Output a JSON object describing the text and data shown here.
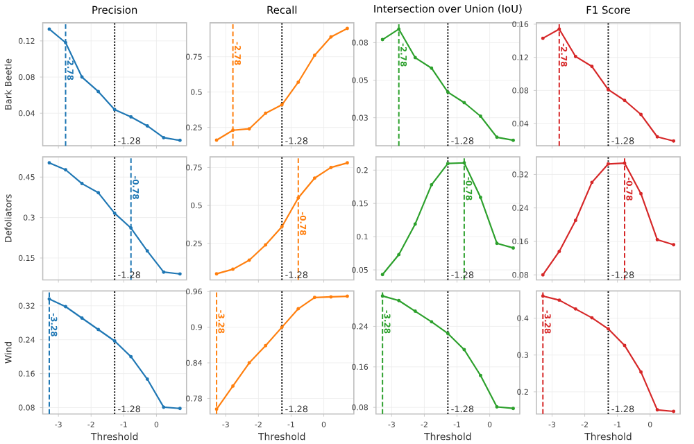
{
  "chart_data": [
    {
      "type": "line",
      "title": "Precision",
      "ylabel": "Bark Beetle",
      "x": [
        -3.28,
        -2.78,
        -2.28,
        -1.78,
        -1.28,
        -0.78,
        -0.28,
        0.22,
        0.72
      ],
      "values": [
        0.133,
        0.118,
        0.08,
        0.064,
        0.044,
        0.036,
        0.026,
        0.013,
        0.01
      ],
      "color": "#1f77b4",
      "xlim": [
        -3.48,
        0.92
      ],
      "ylim": [
        0.004,
        0.14
      ],
      "xticks": [
        -3,
        -2,
        -1,
        0
      ],
      "yticks": [
        0.04,
        0.08,
        0.12
      ],
      "grid": true,
      "marker": "circle",
      "tick_labels": "y",
      "ref_lines": [
        {
          "axis": "x",
          "value": -2.78,
          "label": "-2.78",
          "color": "#1f77b4",
          "line_style": "dashed"
        },
        {
          "axis": "x",
          "value": -1.28,
          "label": "-1.28",
          "color": "#000000",
          "line_style": "dotted"
        }
      ]
    },
    {
      "type": "line",
      "title": "Recall",
      "x": [
        -3.28,
        -2.78,
        -2.28,
        -1.78,
        -1.28,
        -0.78,
        -0.28,
        0.22,
        0.72
      ],
      "values": [
        0.16,
        0.23,
        0.24,
        0.35,
        0.41,
        0.57,
        0.76,
        0.89,
        0.95
      ],
      "color": "#ff7f0e",
      "xlim": [
        -3.48,
        0.92
      ],
      "ylim": [
        0.12,
        0.99
      ],
      "xticks": [
        -3,
        -2,
        -1,
        0
      ],
      "yticks": [
        0.25,
        0.5,
        0.75
      ],
      "grid": true,
      "marker": "circle",
      "tick_labels": "y",
      "ref_lines": [
        {
          "axis": "x",
          "value": -2.78,
          "label": "-2.78",
          "color": "#ff7f0e",
          "line_style": "dashed"
        },
        {
          "axis": "x",
          "value": -1.28,
          "label": "-1.28",
          "color": "#000000",
          "line_style": "dotted"
        }
      ]
    },
    {
      "type": "line",
      "title": "Intersection over Union (IoU)",
      "x": [
        -3.28,
        -2.78,
        -2.28,
        -1.78,
        -1.28,
        -0.78,
        -0.28,
        0.22,
        0.72
      ],
      "values": [
        0.077,
        0.084,
        0.065,
        0.058,
        0.042,
        0.035,
        0.026,
        0.012,
        0.01
      ],
      "color": "#2ca02c",
      "xlim": [
        -3.48,
        0.92
      ],
      "ylim": [
        0.0063,
        0.0882
      ],
      "xticks": [
        -3,
        -2,
        -1,
        0
      ],
      "yticks": [
        {
          "value": 0.025,
          "label": "0.03"
        },
        {
          "value": 0.05,
          "label": "0.05"
        },
        {
          "value": 0.075,
          "label": "0.08"
        }
      ],
      "grid": true,
      "marker": "circle",
      "tick_labels": "y",
      "ref_lines": [
        {
          "axis": "x",
          "value": -2.78,
          "label": "-2.78",
          "color": "#2ca02c",
          "line_style": "dashed"
        },
        {
          "axis": "x",
          "value": -1.28,
          "label": "-1.28",
          "color": "#000000",
          "line_style": "dotted"
        }
      ]
    },
    {
      "type": "line",
      "title": "F1 Score",
      "x": [
        -3.28,
        -2.78,
        -2.28,
        -1.78,
        -1.28,
        -0.78,
        -0.28,
        0.22,
        0.72
      ],
      "values": [
        0.143,
        0.154,
        0.121,
        0.109,
        0.081,
        0.068,
        0.051,
        0.024,
        0.019
      ],
      "color": "#d62728",
      "xlim": [
        -3.48,
        0.92
      ],
      "ylim": [
        0.0132,
        0.1617
      ],
      "xticks": [
        -3,
        -2,
        -1,
        0
      ],
      "yticks": [
        0.04,
        0.08,
        0.12,
        0.16
      ],
      "grid": true,
      "marker": "circle",
      "tick_labels": "y",
      "ref_lines": [
        {
          "axis": "x",
          "value": -2.78,
          "label": "-2.78",
          "color": "#d62728",
          "line_style": "dashed"
        },
        {
          "axis": "x",
          "value": -1.28,
          "label": "-1.28",
          "color": "#000000",
          "line_style": "dotted"
        }
      ]
    },
    {
      "type": "line",
      "ylabel": "Defoliators",
      "x": [
        -3.28,
        -2.78,
        -2.28,
        -1.78,
        -1.28,
        -0.78,
        -0.28,
        0.22,
        0.72
      ],
      "values": [
        0.503,
        0.477,
        0.426,
        0.392,
        0.316,
        0.261,
        0.176,
        0.098,
        0.091
      ],
      "color": "#1f77b4",
      "xlim": [
        -3.48,
        0.92
      ],
      "ylim": [
        0.069,
        0.525
      ],
      "xticks": [
        -3,
        -2,
        -1,
        0
      ],
      "yticks": [
        0.15,
        0.3,
        0.45
      ],
      "grid": true,
      "marker": "circle",
      "tick_labels": "y",
      "ref_lines": [
        {
          "axis": "x",
          "value": -0.78,
          "label": "-0.78",
          "color": "#1f77b4",
          "line_style": "dashed"
        },
        {
          "axis": "x",
          "value": -1.28,
          "label": "-1.28",
          "color": "#000000",
          "line_style": "dotted"
        }
      ]
    },
    {
      "type": "line",
      "x": [
        -3.28,
        -2.78,
        -2.28,
        -1.78,
        -1.28,
        -0.78,
        -0.28,
        0.22,
        0.72
      ],
      "values": [
        0.05,
        0.08,
        0.14,
        0.24,
        0.36,
        0.55,
        0.68,
        0.75,
        0.78
      ],
      "color": "#ff7f0e",
      "xlim": [
        -3.48,
        0.92
      ],
      "ylim": [
        0.01,
        0.82
      ],
      "xticks": [
        -3,
        -2,
        -1,
        0
      ],
      "yticks": [
        0.25,
        0.5,
        0.75
      ],
      "grid": true,
      "marker": "circle",
      "tick_labels": "y",
      "ref_lines": [
        {
          "axis": "x",
          "value": -0.78,
          "label": "-0.78",
          "color": "#ff7f0e",
          "line_style": "dashed"
        },
        {
          "axis": "x",
          "value": -1.28,
          "label": "-1.28",
          "color": "#000000",
          "line_style": "dotted"
        }
      ]
    },
    {
      "type": "line",
      "x": [
        -3.28,
        -2.78,
        -2.28,
        -1.78,
        -1.28,
        -0.78,
        -0.28,
        0.22,
        0.72
      ],
      "values": [
        0.043,
        0.073,
        0.119,
        0.178,
        0.21,
        0.211,
        0.159,
        0.09,
        0.083
      ],
      "color": "#2ca02c",
      "xlim": [
        -3.48,
        0.92
      ],
      "ylim": [
        0.035,
        0.22
      ],
      "xticks": [
        -3,
        -2,
        -1,
        0
      ],
      "yticks": [
        0.05,
        0.1,
        0.15,
        0.2
      ],
      "grid": true,
      "marker": "circle",
      "tick_labels": "y",
      "ref_lines": [
        {
          "axis": "x",
          "value": -0.78,
          "label": "-0.78",
          "color": "#2ca02c",
          "line_style": "dashed"
        },
        {
          "axis": "x",
          "value": -1.28,
          "label": "-1.28",
          "color": "#000000",
          "line_style": "dotted"
        }
      ]
    },
    {
      "type": "line",
      "x": [
        -3.28,
        -2.78,
        -2.28,
        -1.78,
        -1.28,
        -0.78,
        -0.28,
        0.22,
        0.72
      ],
      "values": [
        0.08,
        0.136,
        0.21,
        0.301,
        0.345,
        0.347,
        0.274,
        0.164,
        0.152
      ],
      "color": "#d62728",
      "xlim": [
        -3.48,
        0.92
      ],
      "ylim": [
        0.068,
        0.362
      ],
      "xticks": [
        -3,
        -2,
        -1,
        0
      ],
      "yticks": [
        0.08,
        0.16,
        0.24,
        0.32
      ],
      "grid": true,
      "marker": "circle",
      "tick_labels": "y",
      "ref_lines": [
        {
          "axis": "x",
          "value": -0.78,
          "label": "-0.78",
          "color": "#d62728",
          "line_style": "dashed"
        },
        {
          "axis": "x",
          "value": -1.28,
          "label": "-1.28",
          "color": "#000000",
          "line_style": "dotted"
        }
      ]
    },
    {
      "type": "line",
      "ylabel": "Wind",
      "xlabel": "Threshold",
      "x": [
        -3.28,
        -2.78,
        -2.28,
        -1.78,
        -1.28,
        -0.78,
        -0.28,
        0.22,
        0.72
      ],
      "values": [
        0.336,
        0.318,
        0.291,
        0.264,
        0.237,
        0.2,
        0.147,
        0.081,
        0.078
      ],
      "color": "#1f77b4",
      "xlim": [
        -3.48,
        0.92
      ],
      "ylim": [
        0.065,
        0.355
      ],
      "xticks": [
        -3,
        -2,
        -1,
        0
      ],
      "yticks": [
        0.08,
        0.16,
        0.24,
        0.32
      ],
      "grid": true,
      "marker": "circle",
      "ref_lines": [
        {
          "axis": "x",
          "value": -3.28,
          "label": "-3.28",
          "color": "#1f77b4",
          "line_style": "dashed"
        },
        {
          "axis": "x",
          "value": -1.28,
          "label": "-1.28",
          "color": "#000000",
          "line_style": "dotted"
        }
      ]
    },
    {
      "type": "line",
      "xlabel": "Threshold",
      "x": [
        -3.28,
        -2.78,
        -2.28,
        -1.78,
        -1.28,
        -0.78,
        -0.28,
        0.22,
        0.72
      ],
      "values": [
        0.762,
        0.801,
        0.84,
        0.869,
        0.9,
        0.931,
        0.95,
        0.951,
        0.952
      ],
      "color": "#ff7f0e",
      "xlim": [
        -3.48,
        0.92
      ],
      "ylim": [
        0.754,
        0.961
      ],
      "xticks": [
        -3,
        -2,
        -1,
        0
      ],
      "yticks": [
        0.78,
        0.84,
        0.9,
        0.96
      ],
      "grid": true,
      "marker": "circle",
      "ref_lines": [
        {
          "axis": "x",
          "value": -3.28,
          "label": "-3.28",
          "color": "#ff7f0e",
          "line_style": "dashed"
        },
        {
          "axis": "x",
          "value": -1.28,
          "label": "-1.28",
          "color": "#000000",
          "line_style": "dotted"
        }
      ]
    },
    {
      "type": "line",
      "xlabel": "Threshold",
      "x": [
        -3.28,
        -2.78,
        -2.28,
        -1.78,
        -1.28,
        -0.78,
        -0.28,
        0.22,
        0.72
      ],
      "values": [
        0.3,
        0.291,
        0.27,
        0.249,
        0.226,
        0.194,
        0.143,
        0.081,
        0.078
      ],
      "color": "#2ca02c",
      "xlim": [
        -3.48,
        0.92
      ],
      "ylim": [
        0.067,
        0.31
      ],
      "xticks": [
        -3,
        -2,
        -1,
        0
      ],
      "yticks": [
        0.08,
        0.16,
        0.24
      ],
      "grid": true,
      "marker": "circle",
      "ref_lines": [
        {
          "axis": "x",
          "value": -3.28,
          "label": "-3.28",
          "color": "#2ca02c",
          "line_style": "dashed"
        },
        {
          "axis": "x",
          "value": -1.28,
          "label": "-1.28",
          "color": "#000000",
          "line_style": "dotted"
        }
      ]
    },
    {
      "type": "line",
      "xlabel": "Threshold",
      "x": [
        -3.28,
        -2.78,
        -2.28,
        -1.78,
        -1.28,
        -0.78,
        -0.28,
        0.22,
        0.72
      ],
      "values": [
        0.46,
        0.449,
        0.425,
        0.401,
        0.371,
        0.326,
        0.254,
        0.151,
        0.147
      ],
      "color": "#d62728",
      "xlim": [
        -3.48,
        0.92
      ],
      "ylim": [
        0.14,
        0.474
      ],
      "xticks": [
        -3,
        -2,
        -1,
        0
      ],
      "yticks": [
        0.2,
        0.3,
        0.4
      ],
      "grid": true,
      "marker": "circle",
      "ref_lines": [
        {
          "axis": "x",
          "value": -3.28,
          "label": "-3.28",
          "color": "#d62728",
          "line_style": "dashed"
        },
        {
          "axis": "x",
          "value": -1.28,
          "label": "-1.28",
          "color": "#000000",
          "line_style": "dotted"
        }
      ]
    }
  ]
}
